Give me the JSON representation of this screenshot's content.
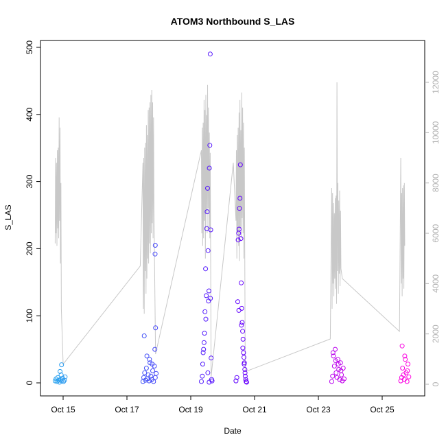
{
  "chart_data": {
    "type": "scatter",
    "title": "ATOM3 Northbound S_LAS",
    "xlabel": "Date",
    "ylabel": "S_LAS",
    "xlim_days": [
      "2014-10-14T00:00",
      "2014-10-25T00:00"
    ],
    "xticks": [
      {
        "date": "2014-10-15",
        "label": "Oct 15"
      },
      {
        "date": "2014-10-17",
        "label": "Oct 17"
      },
      {
        "date": "2014-10-19",
        "label": "Oct 19"
      },
      {
        "date": "2014-10-21",
        "label": "Oct 21"
      },
      {
        "date": "2014-10-23",
        "label": "Oct 23"
      },
      {
        "date": "2014-10-25",
        "label": "Oct 25"
      }
    ],
    "ylim": [
      0,
      500
    ],
    "yticks": [
      0,
      100,
      200,
      300,
      400,
      500
    ],
    "y2lim": [
      0,
      12000
    ],
    "y2ticks": [
      0,
      2000,
      4000,
      6000,
      8000,
      10000,
      12000
    ],
    "colors": {
      "points_start": "#29a3ef",
      "points_mid": "#5a00ff",
      "points_end": "#ff00e0",
      "secondary_line": "#c8c8c8",
      "axis": "#000000",
      "right_axis": "#b0b0b0"
    },
    "series": [
      {
        "axis": "left",
        "style": "points",
        "points": [
          [
            "2014-10-14T18:00",
            3
          ],
          [
            "2014-10-14T18:40",
            6
          ],
          [
            "2014-10-14T19:20",
            2
          ],
          [
            "2014-10-14T20:00",
            8
          ],
          [
            "2014-10-14T20:40",
            4
          ],
          [
            "2014-10-14T21:20",
            1
          ],
          [
            "2014-10-14T22:00",
            5
          ],
          [
            "2014-10-14T22:30",
            12
          ],
          [
            "2014-10-14T23:00",
            3
          ],
          [
            "2014-10-14T23:40",
            7
          ],
          [
            "2014-10-15T00:20",
            2
          ],
          [
            "2014-10-15T01:00",
            4
          ],
          [
            "2014-10-14T21:40",
            17
          ],
          [
            "2014-10-14T22:50",
            27
          ],
          [
            "2014-10-15T01:30",
            9
          ],
          [
            "2014-10-17T12:00",
            2
          ],
          [
            "2014-10-17T12:40",
            8
          ],
          [
            "2014-10-17T13:20",
            15
          ],
          [
            "2014-10-17T14:00",
            4
          ],
          [
            "2014-10-17T14:40",
            22
          ],
          [
            "2014-10-17T15:20",
            6
          ],
          [
            "2014-10-17T16:00",
            12
          ],
          [
            "2014-10-17T16:40",
            3
          ],
          [
            "2014-10-17T17:20",
            30
          ],
          [
            "2014-10-17T18:00",
            10
          ],
          [
            "2014-10-17T18:40",
            5
          ],
          [
            "2014-10-17T19:20",
            18
          ],
          [
            "2014-10-17T20:00",
            2
          ],
          [
            "2014-10-17T20:40",
            25
          ],
          [
            "2014-10-17T21:20",
            8
          ],
          [
            "2014-10-17T22:00",
            14
          ],
          [
            "2014-10-17T13:00",
            70
          ],
          [
            "2014-10-17T15:00",
            40
          ],
          [
            "2014-10-17T17:00",
            35
          ],
          [
            "2014-10-17T19:00",
            28
          ],
          [
            "2014-10-17T21:00",
            50
          ],
          [
            "2014-10-17T21:30",
            82
          ],
          [
            "2014-10-17T21:10",
            192
          ],
          [
            "2014-10-17T21:20",
            205
          ],
          [
            "2014-10-19T08:00",
            2
          ],
          [
            "2014-10-19T08:40",
            10
          ],
          [
            "2014-10-19T09:20",
            45
          ],
          [
            "2014-10-19T10:00",
            60
          ],
          [
            "2014-10-19T10:40",
            106
          ],
          [
            "2014-10-19T11:10",
            170
          ],
          [
            "2014-10-19T11:40",
            130
          ],
          [
            "2014-10-19T12:00",
            230
          ],
          [
            "2014-10-19T12:20",
            255
          ],
          [
            "2014-10-19T12:40",
            290
          ],
          [
            "2014-10-19T13:00",
            197
          ],
          [
            "2014-10-19T13:20",
            122
          ],
          [
            "2014-10-19T13:40",
            137
          ],
          [
            "2014-10-19T14:00",
            320
          ],
          [
            "2014-10-19T14:20",
            354
          ],
          [
            "2014-10-19T14:40",
            490
          ],
          [
            "2014-10-19T15:00",
            228
          ],
          [
            "2014-10-19T15:20",
            37
          ],
          [
            "2014-10-19T15:40",
            5
          ],
          [
            "2014-10-19T16:00",
            3
          ],
          [
            "2014-10-19T09:00",
            28
          ],
          [
            "2014-10-19T10:20",
            74
          ],
          [
            "2014-10-19T11:20",
            95
          ],
          [
            "2014-10-19T12:50",
            15
          ],
          [
            "2014-10-19T14:50",
            126
          ],
          [
            "2014-10-19T09:40",
            50
          ],
          [
            "2014-10-19T13:50",
            1
          ],
          [
            "2014-10-20T10:00",
            3
          ],
          [
            "2014-10-20T10:40",
            8
          ],
          [
            "2014-10-20T11:20",
            121
          ],
          [
            "2014-10-20T11:40",
            213
          ],
          [
            "2014-10-20T12:00",
            223
          ],
          [
            "2014-10-20T12:20",
            229
          ],
          [
            "2014-10-20T12:40",
            260
          ],
          [
            "2014-10-20T13:00",
            275
          ],
          [
            "2014-10-20T13:20",
            325
          ],
          [
            "2014-10-20T13:40",
            215
          ],
          [
            "2014-10-20T14:00",
            149
          ],
          [
            "2014-10-20T14:20",
            111
          ],
          [
            "2014-10-20T14:40",
            90
          ],
          [
            "2014-10-20T15:00",
            77
          ],
          [
            "2014-10-20T15:20",
            65
          ],
          [
            "2014-10-20T15:40",
            45
          ],
          [
            "2014-10-20T16:00",
            38
          ],
          [
            "2014-10-20T16:20",
            30
          ],
          [
            "2014-10-20T16:40",
            20
          ],
          [
            "2014-10-20T17:00",
            10
          ],
          [
            "2014-10-20T17:20",
            5
          ],
          [
            "2014-10-20T17:40",
            2
          ],
          [
            "2014-10-20T18:00",
            1
          ],
          [
            "2014-10-20T12:10",
            108
          ],
          [
            "2014-10-20T14:10",
            86
          ],
          [
            "2014-10-20T15:10",
            52
          ],
          [
            "2014-10-20T16:10",
            28
          ],
          [
            "2014-10-20T16:50",
            15
          ],
          [
            "2014-10-23T10:00",
            2
          ],
          [
            "2014-10-23T10:40",
            10
          ],
          [
            "2014-10-23T11:20",
            40
          ],
          [
            "2014-10-23T12:00",
            25
          ],
          [
            "2014-10-23T12:40",
            50
          ],
          [
            "2014-10-23T13:20",
            15
          ],
          [
            "2014-10-23T14:00",
            8
          ],
          [
            "2014-10-23T14:40",
            35
          ],
          [
            "2014-10-23T15:20",
            20
          ],
          [
            "2014-10-23T16:00",
            5
          ],
          [
            "2014-10-23T16:40",
            30
          ],
          [
            "2014-10-23T17:20",
            12
          ],
          [
            "2014-10-23T18:00",
            3
          ],
          [
            "2014-10-23T18:40",
            22
          ],
          [
            "2014-10-23T19:20",
            6
          ],
          [
            "2014-10-23T11:00",
            45
          ],
          [
            "2014-10-23T13:00",
            33
          ],
          [
            "2014-10-23T15:00",
            28
          ],
          [
            "2014-10-23T17:00",
            18
          ],
          [
            "2014-10-25T14:00",
            3
          ],
          [
            "2014-10-25T14:40",
            8
          ],
          [
            "2014-10-25T15:20",
            22
          ],
          [
            "2014-10-25T16:00",
            12
          ],
          [
            "2014-10-25T16:40",
            5
          ],
          [
            "2014-10-25T17:20",
            35
          ],
          [
            "2014-10-25T18:00",
            15
          ],
          [
            "2014-10-25T18:40",
            2
          ],
          [
            "2014-10-25T19:20",
            28
          ],
          [
            "2014-10-25T20:00",
            9
          ],
          [
            "2014-10-25T15:00",
            55
          ],
          [
            "2014-10-25T17:00",
            40
          ],
          [
            "2014-10-25T19:00",
            18
          ]
        ]
      },
      {
        "axis": "right",
        "style": "line",
        "points": [
          [
            "2014-10-14T18:00",
            5600
          ],
          [
            "2014-10-14T18:20",
            9000
          ],
          [
            "2014-10-14T18:40",
            6000
          ],
          [
            "2014-10-14T19:00",
            8800
          ],
          [
            "2014-10-14T19:20",
            5500
          ],
          [
            "2014-10-14T19:40",
            9300
          ],
          [
            "2014-10-14T20:00",
            6200
          ],
          [
            "2014-10-14T20:20",
            9400
          ],
          [
            "2014-10-14T20:40",
            5800
          ],
          [
            "2014-10-14T21:00",
            10600
          ],
          [
            "2014-10-14T21:20",
            6500
          ],
          [
            "2014-10-14T21:40",
            10200
          ],
          [
            "2014-10-14T22:00",
            4800
          ],
          [
            "2014-10-14T22:20",
            8000
          ],
          [
            "2014-10-14T22:40",
            3000
          ],
          [
            "2014-10-15T00:00",
            800
          ],
          [
            "2014-10-17T10:00",
            4700
          ],
          [
            "2014-10-17T12:00",
            8800
          ],
          [
            "2014-10-17T12:20",
            3000
          ],
          [
            "2014-10-17T12:40",
            9000
          ],
          [
            "2014-10-17T13:00",
            2800
          ],
          [
            "2014-10-17T13:20",
            9400
          ],
          [
            "2014-10-17T13:40",
            4500
          ],
          [
            "2014-10-17T14:00",
            9600
          ],
          [
            "2014-10-17T14:20",
            3600
          ],
          [
            "2014-10-17T14:40",
            10300
          ],
          [
            "2014-10-17T15:00",
            4200
          ],
          [
            "2014-10-17T15:20",
            9900
          ],
          [
            "2014-10-17T15:40",
            5000
          ],
          [
            "2014-10-17T16:00",
            10900
          ],
          [
            "2014-10-17T16:20",
            4800
          ],
          [
            "2014-10-17T16:40",
            11000
          ],
          [
            "2014-10-17T17:00",
            5600
          ],
          [
            "2014-10-17T17:20",
            11200
          ],
          [
            "2014-10-17T17:40",
            5200
          ],
          [
            "2014-10-17T18:00",
            11500
          ],
          [
            "2014-10-17T18:20",
            6000
          ],
          [
            "2014-10-17T18:40",
            11700
          ],
          [
            "2014-10-17T19:00",
            6400
          ],
          [
            "2014-10-17T19:20",
            11200
          ],
          [
            "2014-10-17T19:40",
            5800
          ],
          [
            "2014-10-17T20:00",
            10600
          ],
          [
            "2014-10-17T20:20",
            6900
          ],
          [
            "2014-10-17T21:30",
            1200
          ],
          [
            "2014-10-19T08:00",
            9300
          ],
          [
            "2014-10-19T08:20",
            6000
          ],
          [
            "2014-10-19T08:40",
            10200
          ],
          [
            "2014-10-19T09:00",
            5500
          ],
          [
            "2014-10-19T09:20",
            10400
          ],
          [
            "2014-10-19T09:40",
            5800
          ],
          [
            "2014-10-19T10:00",
            11300
          ],
          [
            "2014-10-19T10:20",
            6500
          ],
          [
            "2014-10-19T10:40",
            10900
          ],
          [
            "2014-10-19T11:00",
            5000
          ],
          [
            "2014-10-19T11:20",
            11500
          ],
          [
            "2014-10-19T11:40",
            6800
          ],
          [
            "2014-10-19T12:00",
            10700
          ],
          [
            "2014-10-19T12:20",
            6000
          ],
          [
            "2014-10-19T12:40",
            11900
          ],
          [
            "2014-10-19T13:00",
            7000
          ],
          [
            "2014-10-19T13:20",
            11000
          ],
          [
            "2014-10-19T13:40",
            6200
          ],
          [
            "2014-10-19T14:00",
            10000
          ],
          [
            "2014-10-19T14:20",
            5800
          ],
          [
            "2014-10-19T14:40",
            9200
          ],
          [
            "2014-10-19T15:20",
            300
          ],
          [
            "2014-10-20T08:00",
            8800
          ],
          [
            "2014-10-20T10:00",
            6500
          ],
          [
            "2014-10-20T10:20",
            9300
          ],
          [
            "2014-10-20T10:40",
            5000
          ],
          [
            "2014-10-20T11:00",
            9900
          ],
          [
            "2014-10-20T11:20",
            6000
          ],
          [
            "2014-10-20T11:40",
            10200
          ],
          [
            "2014-10-20T12:00",
            5500
          ],
          [
            "2014-10-20T12:20",
            10800
          ],
          [
            "2014-10-20T12:40",
            4900
          ],
          [
            "2014-10-20T13:00",
            11300
          ],
          [
            "2014-10-20T13:20",
            6200
          ],
          [
            "2014-10-20T13:40",
            10100
          ],
          [
            "2014-10-20T14:00",
            5800
          ],
          [
            "2014-10-20T14:20",
            11600
          ],
          [
            "2014-10-20T14:40",
            6600
          ],
          [
            "2014-10-20T15:00",
            11000
          ],
          [
            "2014-10-20T15:20",
            6000
          ],
          [
            "2014-10-20T15:40",
            10400
          ],
          [
            "2014-10-20T16:00",
            5000
          ],
          [
            "2014-10-20T16:20",
            9400
          ],
          [
            "2014-10-20T17:00",
            500
          ],
          [
            "2014-10-23T09:00",
            1800
          ],
          [
            "2014-10-23T10:00",
            7800
          ],
          [
            "2014-10-23T10:20",
            3000
          ],
          [
            "2014-10-23T10:40",
            7600
          ],
          [
            "2014-10-23T11:00",
            4000
          ],
          [
            "2014-10-23T11:20",
            7200
          ],
          [
            "2014-10-23T11:40",
            3500
          ],
          [
            "2014-10-23T12:00",
            6800
          ],
          [
            "2014-10-23T12:20",
            4200
          ],
          [
            "2014-10-23T12:40",
            7400
          ],
          [
            "2014-10-23T13:00",
            3800
          ],
          [
            "2014-10-23T13:20",
            7500
          ],
          [
            "2014-10-23T13:40",
            3200
          ],
          [
            "2014-10-23T14:00",
            12000
          ],
          [
            "2014-10-23T14:20",
            4500
          ],
          [
            "2014-10-23T14:40",
            8000
          ],
          [
            "2014-10-23T15:00",
            3600
          ],
          [
            "2014-10-23T15:20",
            7300
          ],
          [
            "2014-10-23T15:40",
            4400
          ],
          [
            "2014-10-23T16:00",
            7700
          ],
          [
            "2014-10-23T16:20",
            3900
          ],
          [
            "2014-10-23T16:40",
            6900
          ],
          [
            "2014-10-23T17:00",
            4600
          ],
          [
            "2014-10-23T18:00",
            4200
          ],
          [
            "2014-10-25T13:00",
            2100
          ],
          [
            "2014-10-25T14:00",
            9000
          ],
          [
            "2014-10-25T14:20",
            4000
          ],
          [
            "2014-10-25T14:40",
            7600
          ],
          [
            "2014-10-25T15:00",
            3500
          ],
          [
            "2014-10-25T15:20",
            7800
          ],
          [
            "2014-10-25T15:40",
            4200
          ],
          [
            "2014-10-25T16:00",
            7900
          ],
          [
            "2014-10-25T16:20",
            3800
          ],
          [
            "2014-10-25T16:40",
            8000
          ],
          [
            "2014-10-25T17:00",
            5500
          ]
        ]
      }
    ]
  }
}
